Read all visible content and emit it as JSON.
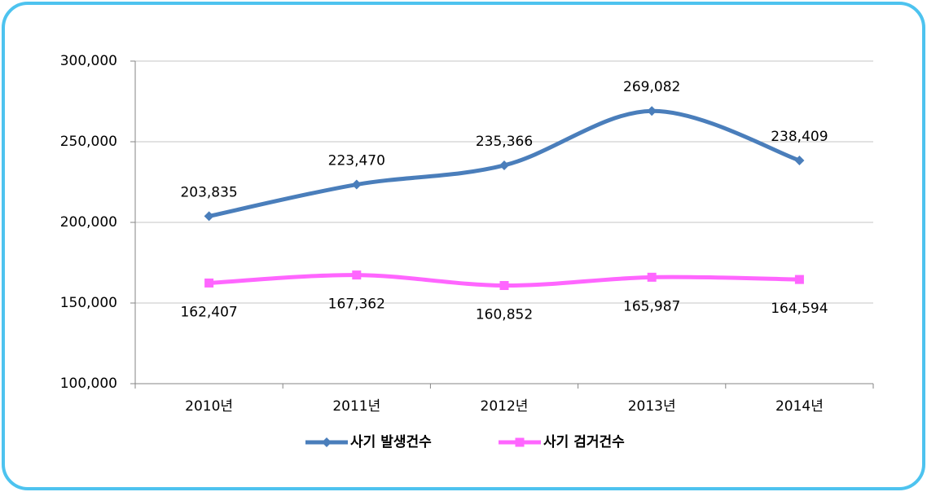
{
  "chart_data": {
    "type": "line",
    "categories": [
      "2010년",
      "2011년",
      "2012년",
      "2013년",
      "2014년"
    ],
    "series": [
      {
        "name": "사기 발생건수",
        "color": "#4a7ebb",
        "marker": "diamond",
        "values": [
          203835,
          223470,
          235366,
          269082,
          238409
        ],
        "value_labels": [
          "203,835",
          "223,470",
          "235,366",
          "269,082",
          "238,409"
        ]
      },
      {
        "name": "사기 검거건수",
        "color": "#ff66ff",
        "marker": "square",
        "values": [
          162407,
          167362,
          160852,
          165987,
          164594
        ],
        "value_labels": [
          "162,407",
          "167,362",
          "160,852",
          "165,987",
          "164,594"
        ]
      }
    ],
    "ylim": [
      100000,
      300000
    ],
    "yticks": [
      {
        "value": 100000,
        "label": "100,000"
      },
      {
        "value": 150000,
        "label": "150,000"
      },
      {
        "value": 200000,
        "label": "200,000"
      },
      {
        "value": 250000,
        "label": "250,000"
      },
      {
        "value": 300000,
        "label": "300,000"
      }
    ],
    "grid": true,
    "smooth": true,
    "legend": "bottom"
  }
}
